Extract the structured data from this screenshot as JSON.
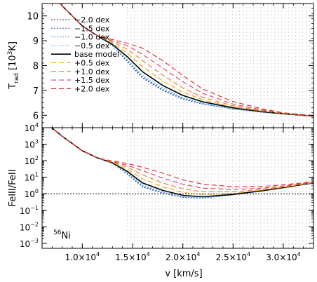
{
  "chart_data": [
    {
      "type": "line",
      "title": "",
      "xlabel": "",
      "ylabel_main": "T",
      "ylabel_sub": "rad",
      "ylabel_unit": "[10",
      "ylabel_unit_exp": "3",
      "ylabel_unit_end": "K]",
      "xlim": [
        6000,
        33000
      ],
      "ylim": [
        5.5,
        10.5
      ],
      "ytick_labels": [
        {
          "value": 6,
          "label": "6"
        },
        {
          "value": 7,
          "label": "7"
        },
        {
          "value": 8,
          "label": "8"
        },
        {
          "value": 9,
          "label": "9"
        },
        {
          "value": 10,
          "label": "10"
        }
      ],
      "shaded_region_x": [
        14500,
        33000
      ],
      "legend_placement": "top-left",
      "series": [
        {
          "name": "−2.0 dex",
          "color": "#1f2fa8",
          "style": "dotted",
          "x": [
            6000,
            8000,
            10000,
            11500,
            13000,
            14500,
            16000,
            18000,
            20000,
            22000,
            25000,
            28000,
            30000,
            33000
          ],
          "y": [
            11.5,
            10.4,
            9.6,
            9.2,
            8.8,
            8.15,
            7.5,
            7.0,
            6.65,
            6.45,
            6.25,
            6.12,
            6.05,
            5.97
          ]
        },
        {
          "name": "−1.5 dex",
          "color": "#3d6fd0",
          "style": "dotted",
          "x": [
            6000,
            8000,
            10000,
            11500,
            13000,
            14500,
            16000,
            18000,
            20000,
            22000,
            25000,
            28000,
            30000,
            33000
          ],
          "y": [
            11.5,
            10.4,
            9.6,
            9.2,
            8.8,
            8.17,
            7.53,
            7.02,
            6.67,
            6.46,
            6.26,
            6.12,
            6.05,
            5.97
          ]
        },
        {
          "name": "−1.0 dex",
          "color": "#5aa0e6",
          "style": "dotted",
          "x": [
            6000,
            8000,
            10000,
            11500,
            13000,
            14500,
            16000,
            18000,
            20000,
            22000,
            25000,
            28000,
            30000,
            33000
          ],
          "y": [
            11.5,
            10.4,
            9.6,
            9.2,
            8.8,
            8.2,
            7.56,
            7.05,
            6.69,
            6.47,
            6.26,
            6.12,
            6.05,
            5.97
          ]
        },
        {
          "name": "−0.5 dex",
          "color": "#6cc6e8",
          "style": "dotted",
          "x": [
            6000,
            8000,
            10000,
            11500,
            13000,
            14500,
            16000,
            18000,
            20000,
            22000,
            25000,
            28000,
            30000,
            33000
          ],
          "y": [
            11.5,
            10.4,
            9.6,
            9.2,
            8.82,
            8.25,
            7.62,
            7.1,
            6.72,
            6.49,
            6.27,
            6.13,
            6.05,
            5.97
          ]
        },
        {
          "name": "base model",
          "color": "#000000",
          "style": "solid",
          "x": [
            6000,
            8000,
            10000,
            11500,
            13000,
            14500,
            16000,
            18000,
            20000,
            22000,
            25000,
            28000,
            30000,
            33000
          ],
          "y": [
            11.5,
            10.4,
            9.6,
            9.2,
            8.85,
            8.35,
            7.75,
            7.2,
            6.8,
            6.54,
            6.3,
            6.14,
            6.06,
            5.97
          ]
        },
        {
          "name": "+0.5 dex",
          "color": "#f2a100",
          "style": "dashed",
          "x": [
            6000,
            8000,
            10000,
            11500,
            13000,
            14500,
            16000,
            18000,
            20000,
            22000,
            25000,
            28000,
            30000,
            33000
          ],
          "y": [
            11.5,
            10.4,
            9.6,
            9.2,
            8.9,
            8.5,
            7.95,
            7.38,
            6.93,
            6.62,
            6.33,
            6.16,
            6.07,
            5.97
          ]
        },
        {
          "name": "+1.0 dex",
          "color": "#ea7b22",
          "style": "dashed",
          "x": [
            6000,
            8000,
            10000,
            11500,
            13000,
            14500,
            16000,
            18000,
            20000,
            22000,
            25000,
            28000,
            30000,
            33000
          ],
          "y": [
            11.5,
            10.4,
            9.6,
            9.2,
            8.95,
            8.65,
            8.2,
            7.62,
            7.1,
            6.72,
            6.38,
            6.18,
            6.08,
            5.97
          ]
        },
        {
          "name": "+1.5 dex",
          "color": "#dc4265",
          "style": "dashed",
          "x": [
            6000,
            8000,
            10000,
            11500,
            13000,
            14500,
            16000,
            18000,
            20000,
            22000,
            25000,
            28000,
            30000,
            33000
          ],
          "y": [
            11.5,
            10.4,
            9.6,
            9.2,
            9.0,
            8.8,
            8.45,
            7.9,
            7.35,
            6.88,
            6.45,
            6.21,
            6.09,
            5.98
          ]
        },
        {
          "name": "+2.0 dex",
          "color": "#e0282a",
          "style": "dashed",
          "x": [
            6000,
            8000,
            10000,
            11500,
            13000,
            14500,
            16000,
            18000,
            20000,
            22000,
            25000,
            28000,
            30000,
            33000
          ],
          "y": [
            11.5,
            10.4,
            9.6,
            9.2,
            9.05,
            8.9,
            8.7,
            8.2,
            7.6,
            7.05,
            6.55,
            6.25,
            6.1,
            5.98
          ]
        }
      ]
    },
    {
      "type": "line",
      "title": "",
      "xlabel": "v [km/s]",
      "ylabel": "FeIII/FeII",
      "yscale": "log",
      "xlim": [
        6000,
        33000
      ],
      "ylim": [
        0.0005,
        10000
      ],
      "ytick_labels": [
        {
          "exp": -3,
          "label": "10",
          "sup": "−3"
        },
        {
          "exp": -2,
          "label": "10",
          "sup": "−2"
        },
        {
          "exp": -1,
          "label": "10",
          "sup": "−1"
        },
        {
          "exp": 0,
          "label": "10",
          "sup": "0"
        },
        {
          "exp": 1,
          "label": "10",
          "sup": "1"
        },
        {
          "exp": 2,
          "label": "10",
          "sup": "2"
        },
        {
          "exp": 3,
          "label": "10",
          "sup": "3"
        },
        {
          "exp": 4,
          "label": "10",
          "sup": "4"
        }
      ],
      "xtick_labels": [
        {
          "value": 10000,
          "label": "1.0×10",
          "sup": "4"
        },
        {
          "value": 15000,
          "label": "1.5×10",
          "sup": "4"
        },
        {
          "value": 20000,
          "label": "2.0×10",
          "sup": "4"
        },
        {
          "value": 25000,
          "label": "2.5×10",
          "sup": "4"
        },
        {
          "value": 30000,
          "label": "3.0×10",
          "sup": "4"
        }
      ],
      "reference_line_y": 1,
      "annotation": {
        "sup": "56",
        "text": "Ni"
      },
      "shaded_region_x": [
        14500,
        33000
      ],
      "series": [
        {
          "name": "−2.0 dex",
          "color": "#1f2fa8",
          "style": "dotted",
          "x": [
            6000,
            8000,
            10000,
            11500,
            13000,
            14500,
            16000,
            18000,
            20000,
            22000,
            25000,
            28000,
            30000,
            33000
          ],
          "y": [
            30000,
            3000,
            400,
            150,
            70,
            15,
            2.6,
            1.1,
            0.6,
            0.55,
            0.85,
            1.5,
            2.3,
            4.5
          ]
        },
        {
          "name": "−1.5 dex",
          "color": "#3d6fd0",
          "style": "dotted",
          "x": [
            6000,
            8000,
            10000,
            11500,
            13000,
            14500,
            16000,
            18000,
            20000,
            22000,
            25000,
            28000,
            30000,
            33000
          ],
          "y": [
            30000,
            3000,
            400,
            150,
            70,
            16,
            2.8,
            1.15,
            0.62,
            0.56,
            0.86,
            1.5,
            2.3,
            4.5
          ]
        },
        {
          "name": "−1.0 dex",
          "color": "#5aa0e6",
          "style": "dotted",
          "x": [
            6000,
            8000,
            10000,
            11500,
            13000,
            14500,
            16000,
            18000,
            20000,
            22000,
            25000,
            28000,
            30000,
            33000
          ],
          "y": [
            30000,
            3000,
            400,
            150,
            70,
            17,
            3.0,
            1.2,
            0.64,
            0.57,
            0.87,
            1.5,
            2.3,
            4.5
          ]
        },
        {
          "name": "−0.5 dex",
          "color": "#6cc6e8",
          "style": "dotted",
          "x": [
            6000,
            8000,
            10000,
            11500,
            13000,
            14500,
            16000,
            18000,
            20000,
            22000,
            25000,
            28000,
            30000,
            33000
          ],
          "y": [
            30000,
            3000,
            400,
            150,
            72,
            19,
            3.5,
            1.3,
            0.68,
            0.6,
            0.88,
            1.5,
            2.3,
            4.5
          ]
        },
        {
          "name": "base model",
          "color": "#000000",
          "style": "solid",
          "x": [
            6000,
            8000,
            10000,
            11500,
            13000,
            14500,
            16000,
            18000,
            20000,
            22000,
            25000,
            28000,
            30000,
            33000
          ],
          "y": [
            30000,
            3000,
            400,
            150,
            75,
            22,
            4.5,
            1.6,
            0.8,
            0.66,
            0.92,
            1.55,
            2.35,
            4.6
          ]
        },
        {
          "name": "+0.5 dex",
          "color": "#f2a100",
          "style": "dashed",
          "x": [
            6000,
            8000,
            10000,
            11500,
            13000,
            14500,
            16000,
            18000,
            20000,
            22000,
            25000,
            28000,
            30000,
            33000
          ],
          "y": [
            30000,
            3000,
            400,
            150,
            78,
            30,
            8,
            2.6,
            1.2,
            0.9,
            1.05,
            1.7,
            2.5,
            4.7
          ]
        },
        {
          "name": "+1.0 dex",
          "color": "#ea7b22",
          "style": "dashed",
          "x": [
            6000,
            8000,
            10000,
            11500,
            13000,
            14500,
            16000,
            18000,
            20000,
            22000,
            25000,
            28000,
            30000,
            33000
          ],
          "y": [
            30000,
            3000,
            400,
            150,
            82,
            40,
            14,
            4.5,
            2,
            1.3,
            1.3,
            1.9,
            2.7,
            4.8
          ]
        },
        {
          "name": "+1.5 dex",
          "color": "#dc4265",
          "style": "dashed",
          "x": [
            6000,
            8000,
            10000,
            11500,
            13000,
            14500,
            16000,
            18000,
            20000,
            22000,
            25000,
            28000,
            30000,
            33000
          ],
          "y": [
            30000,
            3000,
            400,
            150,
            88,
            52,
            25,
            9,
            3.8,
            2.2,
            1.8,
            2.2,
            3.0,
            5.0
          ]
        },
        {
          "name": "+2.0 dex",
          "color": "#e0282a",
          "style": "dashed",
          "x": [
            6000,
            8000,
            10000,
            11500,
            13000,
            14500,
            16000,
            18000,
            20000,
            22000,
            25000,
            28000,
            30000,
            33000
          ],
          "y": [
            30000,
            3000,
            400,
            150,
            95,
            68,
            40,
            18,
            7,
            3.8,
            2.7,
            2.8,
            3.5,
            5.3
          ]
        }
      ]
    }
  ]
}
